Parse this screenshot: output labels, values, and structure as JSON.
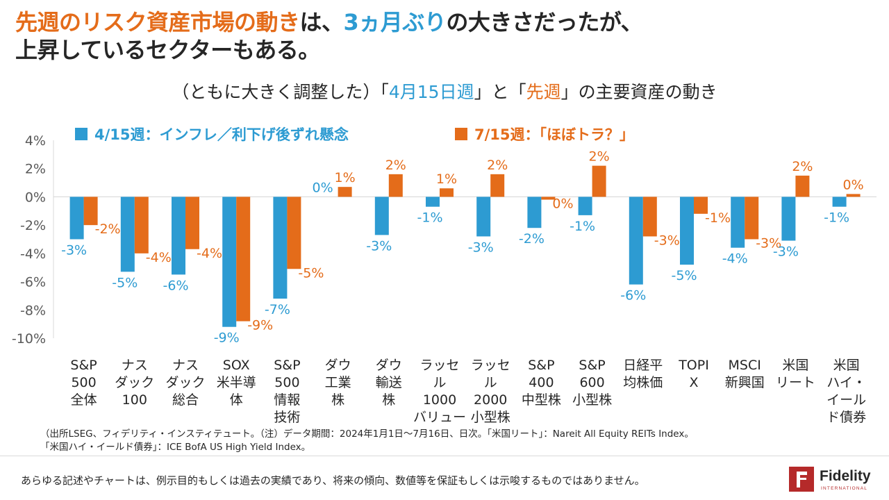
{
  "headline": {
    "line1_part1": "先週のリスク資産市場の動き",
    "line1_part2": "は、",
    "line1_part3": "3ヵ月ぶり",
    "line1_part4": "の大きさだったが、",
    "line2": "上昇しているセクターもある。"
  },
  "subtitle": {
    "part1": "（ともに大きく調整した）「",
    "part2": "4月15日週",
    "part3": "」と「",
    "part4": "先週",
    "part5": "」の主要資産の動き"
  },
  "colors": {
    "series1": "#2d9bd2",
    "series2": "#e46c1a",
    "title_orange": "#e46c1a",
    "title_blue": "#2d9bd2"
  },
  "chart_data": {
    "type": "bar",
    "ylim": [
      -10,
      4
    ],
    "yticks": [
      "4%",
      "2%",
      "0%",
      "-2%",
      "-4%",
      "-6%",
      "-8%",
      "-10%"
    ],
    "grid": false,
    "legend_position": "top",
    "categories": [
      [
        "S&P",
        "500",
        "全体"
      ],
      [
        "ナス",
        "ダック",
        "100"
      ],
      [
        "ナス",
        "ダック",
        "総合"
      ],
      [
        "SOX",
        "米半導",
        "体"
      ],
      [
        "S&P",
        "500",
        "情報",
        "技術"
      ],
      [
        "ダウ",
        "工業",
        "株"
      ],
      [
        "ダウ",
        "輸送",
        "株"
      ],
      [
        "ラッセ",
        "ル",
        "1000",
        "バリュー"
      ],
      [
        "ラッセ",
        "ル",
        "2000",
        "小型株"
      ],
      [
        "S&P",
        "400",
        "中型株"
      ],
      [
        "S&P",
        "600",
        "小型株"
      ],
      [
        "日経平",
        "均株価"
      ],
      [
        "TOPI",
        "X"
      ],
      [
        "MSCI",
        "新興国"
      ],
      [
        "米国",
        "リート"
      ],
      [
        "米国",
        "ハイ・",
        "イール",
        "ド債券"
      ]
    ],
    "series": [
      {
        "name": "4/15週：インフレ／利下げ後ずれ懸念",
        "values": [
          -3.0,
          -5.3,
          -5.5,
          -9.2,
          -7.2,
          0.0,
          -2.7,
          -0.7,
          -2.8,
          -2.2,
          -1.3,
          -6.2,
          -4.8,
          -3.6,
          -3.1,
          -0.7
        ],
        "labels": [
          "-3%",
          "-5%",
          "-6%",
          "-9%",
          "-7%",
          "0%",
          "-3%",
          "-1%",
          "-3%",
          "-2%",
          "-1%",
          "-6%",
          "-5%",
          "-4%",
          "-3%",
          "-1%"
        ]
      },
      {
        "name": "7/15週：「ほぼトラ？」",
        "values": [
          -2.0,
          -4.0,
          -3.7,
          -8.8,
          -5.1,
          0.7,
          1.6,
          0.6,
          1.6,
          -0.2,
          2.2,
          -2.8,
          -1.2,
          -3.0,
          1.5,
          0.2
        ],
        "labels": [
          "-2%",
          "-4%",
          "-4%",
          "-9%",
          "-5%",
          "1%",
          "2%",
          "1%",
          "2%",
          "0%",
          "2%",
          "-3%",
          "-1%",
          "-3%",
          "2%",
          "0%"
        ]
      }
    ]
  },
  "footnote": {
    "line1": "（出所LSEG、フィデリティ・インスティテュート。（注）データ期間：2024年1月1日～7月16日、日次。「米国リート」：Nareit  All Equity REITs Index。",
    "line2": "「米国ハイ・イールド債券」：ICE BofA US High Yield Index。"
  },
  "disclaimer": "あらゆる記述やチャートは、例示目的もしくは過去の実績であり、将来の傾向、数値等を保証もしくは示唆するものではありません。",
  "logo": {
    "name": "Fidelity",
    "sub": "INTERNATIONAL",
    "icon": "fidelity-logo-icon"
  }
}
